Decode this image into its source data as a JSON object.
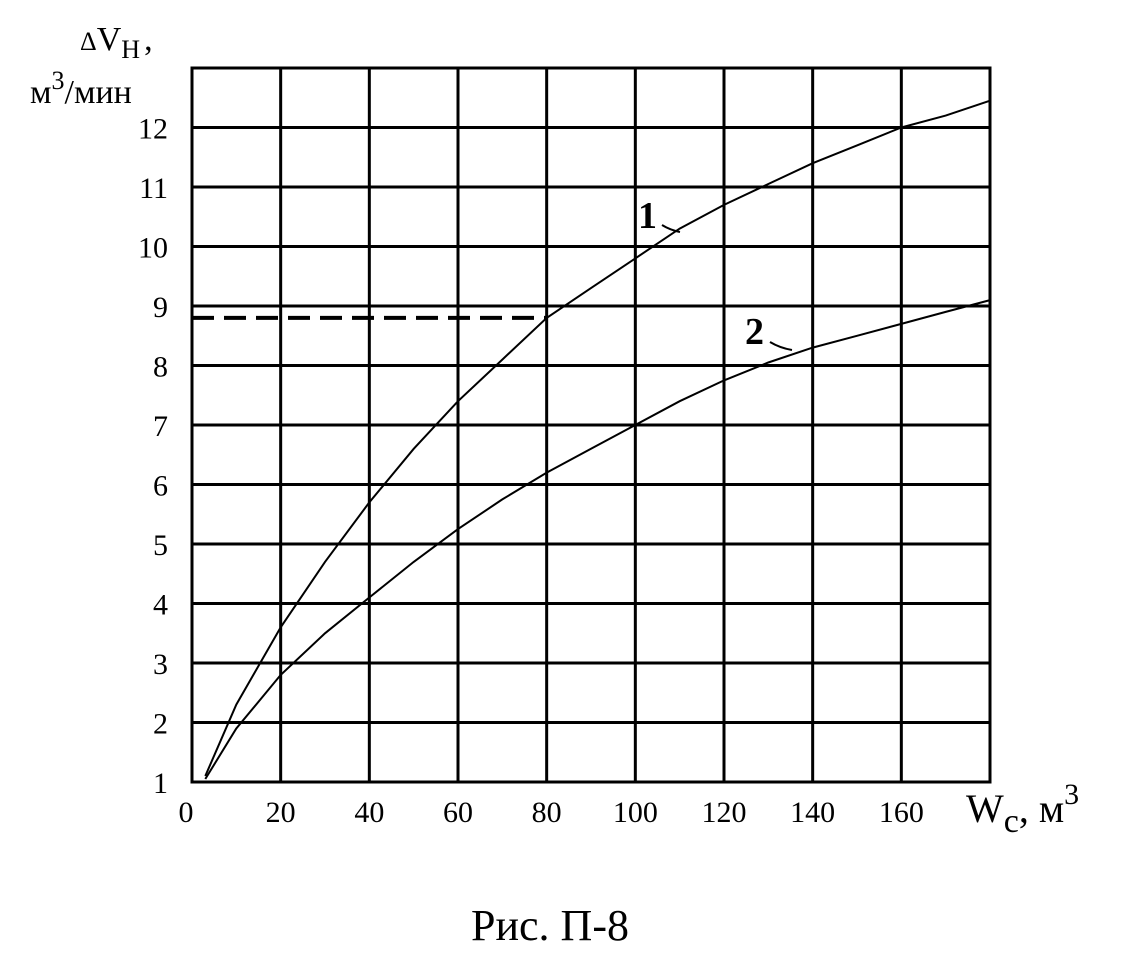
{
  "figure": {
    "caption": "Рис. П-8"
  },
  "chart_data": {
    "type": "line",
    "xlabel": {
      "main": "W",
      "sub": "c",
      "unit_prefix": ", м",
      "unit_sup": "3"
    },
    "ylabel": {
      "delta": "Δ",
      "main": "V",
      "sub": "Н",
      "comma": ",",
      "unit_main": "м",
      "unit_sup": "3",
      "unit_rest": "/мин"
    },
    "xlim": [
      0,
      180
    ],
    "ylim": [
      1,
      13
    ],
    "x_ticks": [
      0,
      20,
      40,
      60,
      80,
      100,
      120,
      140,
      160
    ],
    "y_ticks": [
      1,
      2,
      3,
      4,
      5,
      6,
      7,
      8,
      9,
      10,
      11,
      12
    ],
    "grid": true,
    "series": [
      {
        "name": "1",
        "x": [
          3,
          10,
          20,
          30,
          40,
          50,
          60,
          70,
          80,
          90,
          100,
          110,
          120,
          130,
          140,
          150,
          160,
          170,
          180
        ],
        "y": [
          1.1,
          2.3,
          3.6,
          4.7,
          5.7,
          6.6,
          7.4,
          8.1,
          8.8,
          9.3,
          9.8,
          10.3,
          10.7,
          11.05,
          11.4,
          11.7,
          12.0,
          12.2,
          12.45
        ]
      },
      {
        "name": "2",
        "x": [
          3,
          10,
          20,
          30,
          40,
          50,
          60,
          70,
          80,
          90,
          100,
          110,
          120,
          130,
          140,
          150,
          160,
          170,
          180
        ],
        "y": [
          1.05,
          1.9,
          2.8,
          3.5,
          4.1,
          4.7,
          5.25,
          5.75,
          6.2,
          6.6,
          7.0,
          7.4,
          7.75,
          8.05,
          8.3,
          8.5,
          8.7,
          8.9,
          9.1
        ]
      }
    ],
    "reference_line": {
      "style": "dashed",
      "x": [
        0,
        80
      ],
      "y": 8.8
    }
  }
}
